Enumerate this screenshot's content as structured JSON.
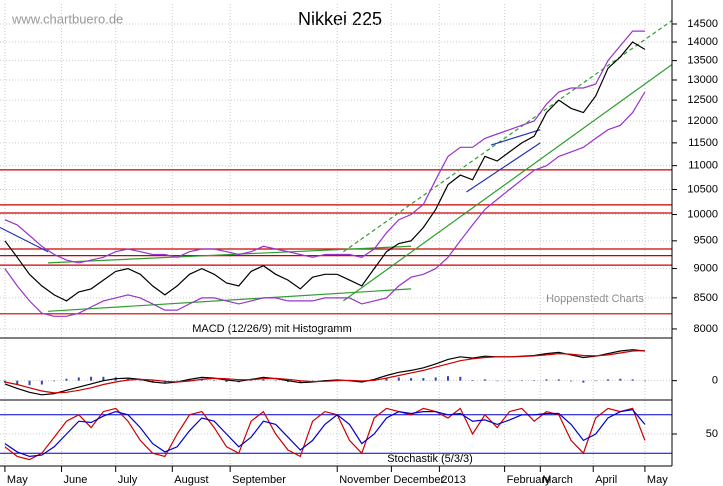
{
  "chart_data": [
    {
      "type": "line",
      "title": "Nikkei 225",
      "watermark": "www.chartbuero.de",
      "source": "Hoppenstedt Charts",
      "log_scale": true,
      "grid": true,
      "x": [
        0,
        1,
        2,
        3,
        4,
        5,
        6,
        7,
        8,
        9,
        10,
        11,
        12,
        13,
        14,
        15,
        16,
        17,
        18,
        19,
        20,
        21,
        22,
        23,
        24,
        25,
        26,
        27,
        28,
        29,
        30,
        31,
        32,
        33,
        34,
        35,
        36,
        37,
        38,
        39,
        40,
        41,
        42,
        43,
        44,
        45,
        46,
        47,
        48,
        49,
        50,
        51,
        52
      ],
      "xlim": [
        -0.4,
        54.2
      ],
      "xticks": [
        {
          "value": 0,
          "label": "May"
        },
        {
          "value": 4.6,
          "label": "June"
        },
        {
          "value": 9,
          "label": "July"
        },
        {
          "value": 13.6,
          "label": "August"
        },
        {
          "value": 18.3,
          "label": "September"
        },
        {
          "value": 27,
          "label": "November"
        },
        {
          "value": 31.4,
          "label": "December"
        },
        {
          "value": 35.3,
          "label": "2013"
        },
        {
          "value": 40.6,
          "label": "February"
        },
        {
          "value": 43.5,
          "label": "March"
        },
        {
          "value": 47.8,
          "label": "April"
        },
        {
          "value": 52,
          "label": "May"
        }
      ],
      "ylim": [
        7860,
        15077
      ],
      "yticks": [
        8000,
        8500,
        9000,
        9500,
        10000,
        10500,
        11000,
        11500,
        12000,
        12500,
        13000,
        13500,
        14000,
        14500
      ],
      "series": [
        {
          "color": "#000000",
          "values": [
            9500,
            9200,
            8900,
            8700,
            8550,
            8450,
            8600,
            8650,
            8800,
            8950,
            9000,
            8900,
            8700,
            8550,
            8700,
            8900,
            9000,
            8900,
            8750,
            8700,
            8950,
            9050,
            8900,
            8800,
            8650,
            8850,
            8900,
            8900,
            8800,
            8700,
            9000,
            9300,
            9450,
            9500,
            9750,
            10100,
            10600,
            10800,
            10700,
            11200,
            11100,
            11300,
            11500,
            11650,
            12200,
            12500,
            12300,
            12200,
            12600,
            13300,
            13600,
            14000,
            13800
          ]
        },
        {
          "color": "#9933cc",
          "values": [
            9900,
            9800,
            9600,
            9400,
            9250,
            9150,
            9100,
            9150,
            9200,
            9300,
            9350,
            9300,
            9250,
            9250,
            9200,
            9300,
            9350,
            9350,
            9300,
            9250,
            9300,
            9400,
            9350,
            9300,
            9250,
            9200,
            9250,
            9250,
            9250,
            9200,
            9350,
            9650,
            9900,
            10000,
            10200,
            10700,
            11200,
            11400,
            11400,
            11600,
            11700,
            11800,
            11900,
            12000,
            12400,
            12700,
            12800,
            12800,
            12900,
            13500,
            13900,
            14300,
            14300
          ]
        },
        {
          "color": "#9933cc",
          "values": [
            9000,
            8700,
            8450,
            8250,
            8200,
            8200,
            8250,
            8350,
            8450,
            8500,
            8550,
            8500,
            8400,
            8300,
            8300,
            8400,
            8500,
            8500,
            8450,
            8400,
            8450,
            8500,
            8500,
            8450,
            8450,
            8450,
            8500,
            8500,
            8500,
            8400,
            8450,
            8500,
            8700,
            8850,
            8900,
            9000,
            9200,
            9500,
            9800,
            10100,
            10300,
            10500,
            10700,
            10900,
            11000,
            11200,
            11300,
            11400,
            11600,
            11800,
            11900,
            12200,
            12700
          ]
        }
      ],
      "hlines": {
        "color": "#cc0000",
        "values": [
          8240,
          9060,
          9230,
          9350,
          10030,
          10190,
          10910
        ]
      },
      "trendlines": [
        {
          "color": "#2e9e2e",
          "dashed": false,
          "x": [
            3.5,
            33
          ],
          "y": [
            8280,
            8650
          ]
        },
        {
          "color": "#2e9e2e",
          "dashed": false,
          "x": [
            3.5,
            33
          ],
          "y": [
            9100,
            9400
          ]
        },
        {
          "color": "#2e9e2e",
          "dashed": false,
          "x": [
            27.5,
            54.2
          ],
          "y": [
            8450,
            13400
          ]
        },
        {
          "color": "#2e9e2e",
          "dashed": true,
          "x": [
            27.5,
            54.2
          ],
          "y": [
            9300,
            14600
          ]
        },
        {
          "color": "#2233bb",
          "dashed": false,
          "x": [
            -0.4,
            3.5
          ],
          "y": [
            9750,
            9300
          ]
        },
        {
          "color": "#2233bb",
          "dashed": false,
          "x": [
            37.5,
            43.5
          ],
          "y": [
            10450,
            11500
          ]
        },
        {
          "color": "#2233bb",
          "dashed": false,
          "x": [
            39.5,
            43.5
          ],
          "y": [
            11450,
            11800
          ]
        }
      ]
    },
    {
      "type": "line",
      "title": "MACD (12/26/9) mit Histogramm",
      "ylim": [
        -300,
        600
      ],
      "yticks": [
        0
      ],
      "series": [
        {
          "type": "bar",
          "color": "#3344aa",
          "values": [
            -30,
            -60,
            -70,
            -60,
            -10,
            30,
            50,
            60,
            60,
            50,
            30,
            0,
            -30,
            -30,
            0,
            25,
            30,
            5,
            -20,
            -25,
            5,
            20,
            -5,
            -20,
            -30,
            -5,
            10,
            10,
            -5,
            -15,
            15,
            40,
            50,
            40,
            40,
            50,
            70,
            60,
            10,
            20,
            0,
            0,
            5,
            5,
            20,
            20,
            -10,
            -30,
            -5,
            20,
            30,
            20,
            -5
          ]
        },
        {
          "color": "#000000",
          "values": [
            -50,
            -120,
            -180,
            -220,
            -200,
            -150,
            -100,
            -50,
            0,
            30,
            40,
            20,
            -20,
            -40,
            -20,
            20,
            50,
            40,
            10,
            -10,
            20,
            50,
            30,
            0,
            -30,
            -20,
            0,
            10,
            0,
            -20,
            20,
            80,
            130,
            160,
            200,
            260,
            330,
            370,
            350,
            380,
            370,
            370,
            380,
            390,
            420,
            440,
            400,
            360,
            380,
            420,
            460,
            480,
            460
          ]
        },
        {
          "color": "#cc0000",
          "values": [
            -20,
            -60,
            -110,
            -160,
            -190,
            -180,
            -150,
            -110,
            -60,
            -20,
            10,
            20,
            10,
            -10,
            -20,
            -5,
            20,
            35,
            30,
            15,
            15,
            30,
            35,
            20,
            0,
            -15,
            -10,
            0,
            5,
            -5,
            5,
            40,
            80,
            120,
            160,
            210,
            260,
            310,
            340,
            360,
            370,
            370,
            375,
            385,
            400,
            420,
            410,
            390,
            385,
            400,
            430,
            460,
            465
          ]
        }
      ]
    },
    {
      "type": "line",
      "title": "Stochastik (5/3/3)",
      "ylim": [
        0,
        100
      ],
      "yticks": [
        50
      ],
      "levels": {
        "color": "#0000cc",
        "values": [
          80,
          20
        ]
      },
      "series": [
        {
          "color": "#cc0000",
          "values": [
            30,
            15,
            10,
            20,
            45,
            70,
            80,
            60,
            85,
            90,
            70,
            40,
            20,
            15,
            50,
            80,
            85,
            60,
            30,
            20,
            70,
            85,
            50,
            25,
            15,
            70,
            85,
            80,
            40,
            20,
            75,
            90,
            85,
            80,
            90,
            85,
            75,
            90,
            50,
            80,
            60,
            85,
            90,
            70,
            85,
            80,
            40,
            20,
            75,
            90,
            85,
            90,
            40
          ]
        },
        {
          "color": "#0000cc",
          "values": [
            35,
            22,
            15,
            17,
            30,
            50,
            70,
            68,
            78,
            85,
            80,
            60,
            35,
            22,
            30,
            55,
            75,
            70,
            50,
            30,
            45,
            70,
            65,
            45,
            25,
            40,
            65,
            80,
            65,
            35,
            50,
            75,
            85,
            82,
            85,
            85,
            80,
            82,
            70,
            72,
            65,
            72,
            80,
            80,
            82,
            82,
            65,
            40,
            50,
            75,
            85,
            88,
            65
          ]
        }
      ]
    }
  ]
}
